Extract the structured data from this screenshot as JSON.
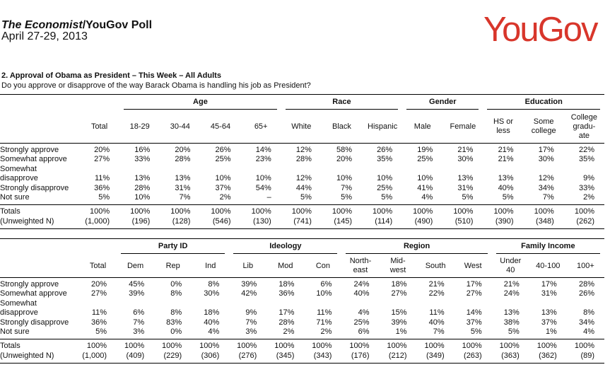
{
  "header": {
    "title_italic": "The Economist",
    "title_rest": "/YouGov Poll",
    "date": "April 27-29, 2013",
    "logo_text": "YouGov",
    "logo_color": "#d8362b"
  },
  "question": {
    "title": "2. Approval of Obama as President – This Week – All Adults",
    "text": "Do you approve or disapprove of the way Barack Obama is handling his job as President?"
  },
  "tables": [
    {
      "groups": [
        {
          "label": "",
          "span": 1
        },
        {
          "label": "Age",
          "span": 4
        },
        {
          "label": "Race",
          "span": 3
        },
        {
          "label": "Gender",
          "span": 2
        },
        {
          "label": "Education",
          "span": 3
        }
      ],
      "columns": [
        "Total",
        "18-29",
        "30-44",
        "45-64",
        "65+",
        "White",
        "Black",
        "Hispanic",
        "Male",
        "Female",
        "HS or less",
        "Some college",
        "College gradu-ate"
      ],
      "rows": [
        {
          "label": "Strongly approve",
          "values": [
            "20%",
            "16%",
            "20%",
            "26%",
            "14%",
            "12%",
            "58%",
            "26%",
            "19%",
            "21%",
            "21%",
            "17%",
            "22%"
          ]
        },
        {
          "label": "Somewhat approve",
          "values": [
            "27%",
            "33%",
            "28%",
            "25%",
            "23%",
            "28%",
            "20%",
            "35%",
            "25%",
            "30%",
            "21%",
            "30%",
            "35%"
          ]
        },
        {
          "label": "Somewhat disapprove",
          "values": [
            "11%",
            "13%",
            "13%",
            "10%",
            "10%",
            "12%",
            "10%",
            "10%",
            "10%",
            "13%",
            "13%",
            "12%",
            "9%"
          ]
        },
        {
          "label": "Strongly disapprove",
          "values": [
            "36%",
            "28%",
            "31%",
            "37%",
            "54%",
            "44%",
            "7%",
            "25%",
            "41%",
            "31%",
            "40%",
            "34%",
            "33%"
          ]
        },
        {
          "label": "Not sure",
          "values": [
            "5%",
            "10%",
            "7%",
            "2%",
            "–",
            "5%",
            "5%",
            "5%",
            "4%",
            "5%",
            "5%",
            "7%",
            "2%"
          ]
        }
      ],
      "totals": {
        "label": "Totals",
        "values": [
          "100%",
          "100%",
          "100%",
          "100%",
          "100%",
          "100%",
          "100%",
          "100%",
          "100%",
          "100%",
          "100%",
          "100%",
          "100%"
        ]
      },
      "n": {
        "label": "(Unweighted N)",
        "values": [
          "(1,000)",
          "(196)",
          "(128)",
          "(546)",
          "(130)",
          "(741)",
          "(145)",
          "(114)",
          "(490)",
          "(510)",
          "(390)",
          "(348)",
          "(262)"
        ]
      }
    },
    {
      "groups": [
        {
          "label": "",
          "span": 1
        },
        {
          "label": "Party ID",
          "span": 3
        },
        {
          "label": "Ideology",
          "span": 3
        },
        {
          "label": "Region",
          "span": 4
        },
        {
          "label": "Family Income",
          "span": 3
        }
      ],
      "columns": [
        "Total",
        "Dem",
        "Rep",
        "Ind",
        "Lib",
        "Mod",
        "Con",
        "North-east",
        "Mid-west",
        "South",
        "West",
        "Under 40",
        "40-100",
        "100+"
      ],
      "rows": [
        {
          "label": "Strongly approve",
          "values": [
            "20%",
            "45%",
            "0%",
            "8%",
            "39%",
            "18%",
            "6%",
            "24%",
            "18%",
            "21%",
            "17%",
            "21%",
            "17%",
            "28%"
          ]
        },
        {
          "label": "Somewhat approve",
          "values": [
            "27%",
            "39%",
            "8%",
            "30%",
            "42%",
            "36%",
            "10%",
            "40%",
            "27%",
            "22%",
            "27%",
            "24%",
            "31%",
            "26%"
          ]
        },
        {
          "label": "Somewhat disapprove",
          "values": [
            "11%",
            "6%",
            "8%",
            "18%",
            "9%",
            "17%",
            "11%",
            "4%",
            "15%",
            "11%",
            "14%",
            "13%",
            "13%",
            "8%"
          ]
        },
        {
          "label": "Strongly disapprove",
          "values": [
            "36%",
            "7%",
            "83%",
            "40%",
            "7%",
            "28%",
            "71%",
            "25%",
            "39%",
            "40%",
            "37%",
            "38%",
            "37%",
            "34%"
          ]
        },
        {
          "label": "Not sure",
          "values": [
            "5%",
            "3%",
            "0%",
            "4%",
            "3%",
            "2%",
            "2%",
            "6%",
            "1%",
            "7%",
            "5%",
            "5%",
            "1%",
            "4%"
          ]
        }
      ],
      "totals": {
        "label": "Totals",
        "values": [
          "100%",
          "100%",
          "100%",
          "100%",
          "100%",
          "100%",
          "100%",
          "100%",
          "100%",
          "100%",
          "100%",
          "100%",
          "100%",
          "100%"
        ]
      },
      "n": {
        "label": "(Unweighted N)",
        "values": [
          "(1,000)",
          "(409)",
          "(229)",
          "(306)",
          "(276)",
          "(345)",
          "(343)",
          "(176)",
          "(212)",
          "(349)",
          "(263)",
          "(363)",
          "(362)",
          "(89)"
        ]
      }
    }
  ]
}
